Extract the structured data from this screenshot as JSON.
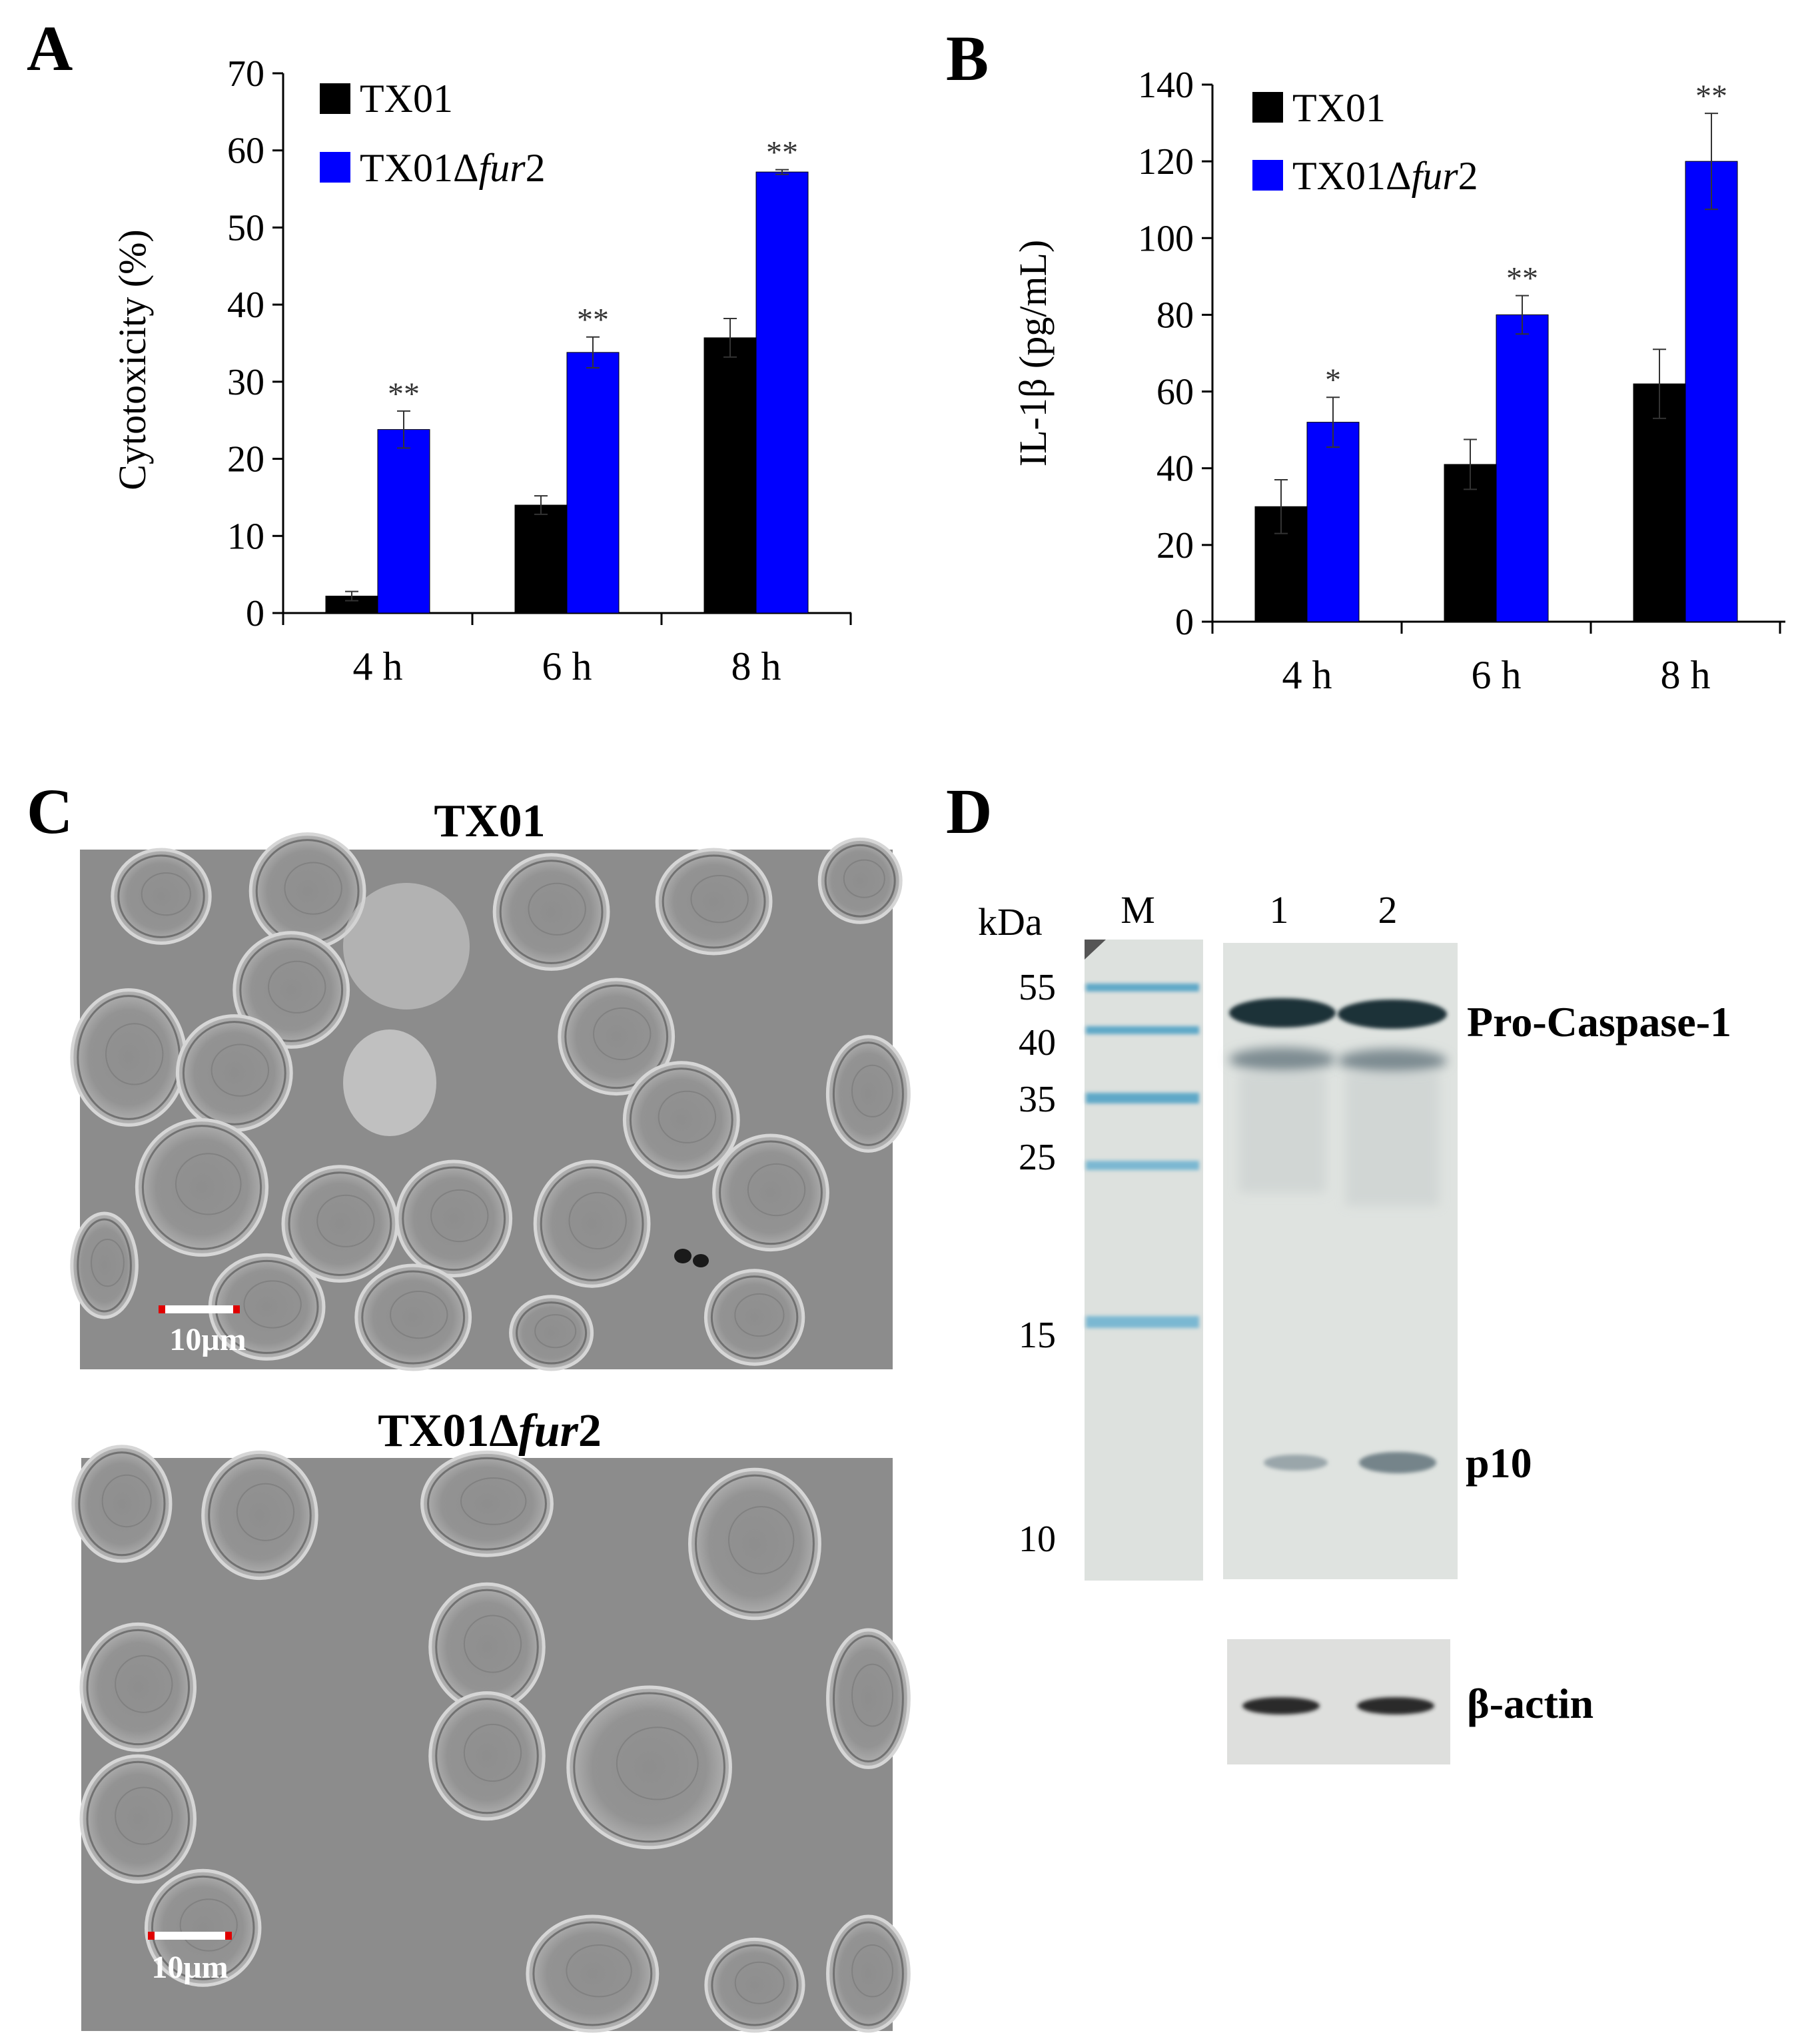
{
  "panels": {
    "A": {
      "letter": "A",
      "ylabel": "Cytotoxicity (%)",
      "y_ticks": [
        "0",
        "10",
        "20",
        "30",
        "40",
        "50",
        "60",
        "70"
      ],
      "legend": [
        {
          "prefix": "TX01",
          "italic": "",
          "suffix": ""
        },
        {
          "prefix": "TX01Δ",
          "italic": "fur",
          "suffix": "2"
        }
      ]
    },
    "B": {
      "letter": "B",
      "ylabel": "IL-1β (pg/mL)",
      "y_ticks": [
        "0",
        "20",
        "40",
        "60",
        "80",
        "100",
        "120",
        "140"
      ],
      "legend": [
        {
          "prefix": "TX01",
          "italic": "",
          "suffix": ""
        },
        {
          "prefix": "TX01Δ",
          "italic": "fur",
          "suffix": "2"
        }
      ]
    },
    "C": {
      "letter": "C",
      "top_title": "TX01",
      "bottom_title": {
        "prefix": "TX01Δ",
        "italic": "fur",
        "suffix": "2"
      },
      "scale_bar_label": "10μm"
    },
    "D": {
      "letter": "D",
      "kda_label": "kDa",
      "lane_labels": [
        "M",
        "1",
        "2"
      ],
      "marker_sizes": [
        "55",
        "40",
        "35",
        "25",
        "15",
        "10"
      ],
      "band_labels": [
        "Pro-Caspase-1",
        "p10"
      ],
      "loading_control": "β-actin"
    }
  },
  "colors": {
    "series_TX01": "#000000",
    "series_TX01_fur2": "#0000ff",
    "micrograph_bg": "#8a8a8a",
    "blot_bg": "#d8dcd8",
    "marker_band": "#5ea8c8"
  },
  "chart_data": [
    {
      "type": "bar",
      "panel": "A",
      "categories": [
        "4 h",
        "6 h",
        "8 h"
      ],
      "series": [
        {
          "name": "TX01",
          "values": [
            2.2,
            14.0,
            35.7
          ],
          "errors": [
            0.6,
            1.2,
            2.5
          ]
        },
        {
          "name": "TX01Δfur2",
          "values": [
            23.8,
            33.8,
            57.2
          ],
          "errors": [
            2.4,
            2.0,
            0.3
          ]
        }
      ],
      "significance": [
        [
          "",
          "**"
        ],
        [
          "",
          "**"
        ],
        [
          "",
          "**"
        ]
      ],
      "ylabel": "Cytotoxicity (%)",
      "ylim": [
        0,
        70
      ],
      "yticks": [
        0,
        10,
        20,
        30,
        40,
        50,
        60,
        70
      ],
      "legend_position": "top-left",
      "grid": false
    },
    {
      "type": "bar",
      "panel": "B",
      "categories": [
        "4 h",
        "6 h",
        "8 h"
      ],
      "series": [
        {
          "name": "TX01",
          "values": [
            30,
            41,
            62
          ],
          "errors": [
            7,
            6.5,
            9
          ]
        },
        {
          "name": "TX01Δfur2",
          "values": [
            52,
            80,
            120
          ],
          "errors": [
            6.5,
            5,
            12.5
          ]
        }
      ],
      "significance": [
        [
          "",
          "*"
        ],
        [
          "",
          "**"
        ],
        [
          "",
          "**"
        ]
      ],
      "ylabel": "IL-1β (pg/mL)",
      "ylim": [
        0,
        140
      ],
      "yticks": [
        0,
        20,
        40,
        60,
        80,
        100,
        120,
        140
      ],
      "legend_position": "top-left",
      "grid": false
    }
  ]
}
